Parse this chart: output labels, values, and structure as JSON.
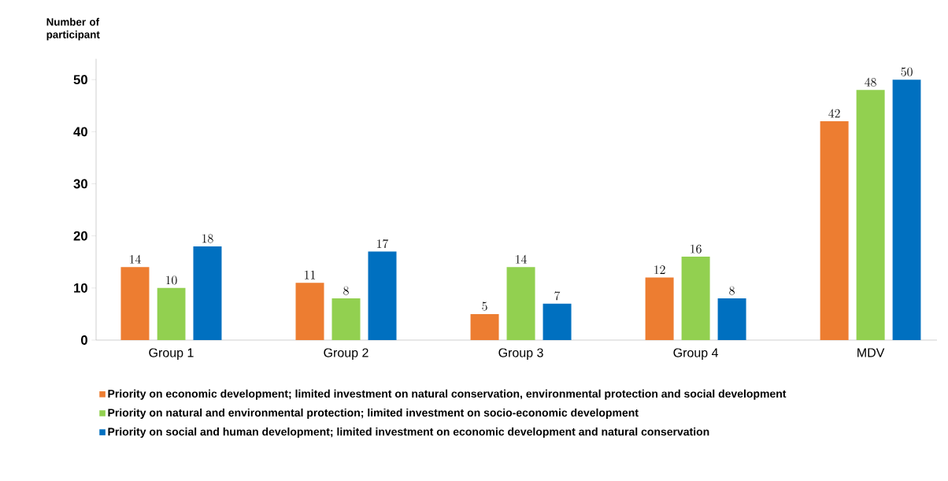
{
  "chart_data": {
    "type": "bar",
    "ylabel": "Number of participant",
    "categories": [
      "Group 1",
      "Group 2",
      "Group 3",
      "Group 4",
      "MDV"
    ],
    "series": [
      {
        "name": "Priority on economic development; limited investment on natural conservation, environmental protection and social development",
        "color": "#ed7d31",
        "values": [
          14,
          11,
          5,
          12,
          42
        ]
      },
      {
        "name": "Priority on natural and environmental protection; limited investment on socio-economic development",
        "color": "#92d050",
        "values": [
          10,
          8,
          14,
          16,
          48
        ]
      },
      {
        "name": "Priority on social and human development; limited investment on economic development and natural conservation",
        "color": "#0070c0",
        "values": [
          18,
          17,
          7,
          8,
          50
        ]
      }
    ],
    "ylim": [
      0,
      54
    ],
    "yticks": [
      0,
      10,
      20,
      30,
      40,
      50
    ],
    "data_labels": true,
    "legend": "bottom"
  }
}
